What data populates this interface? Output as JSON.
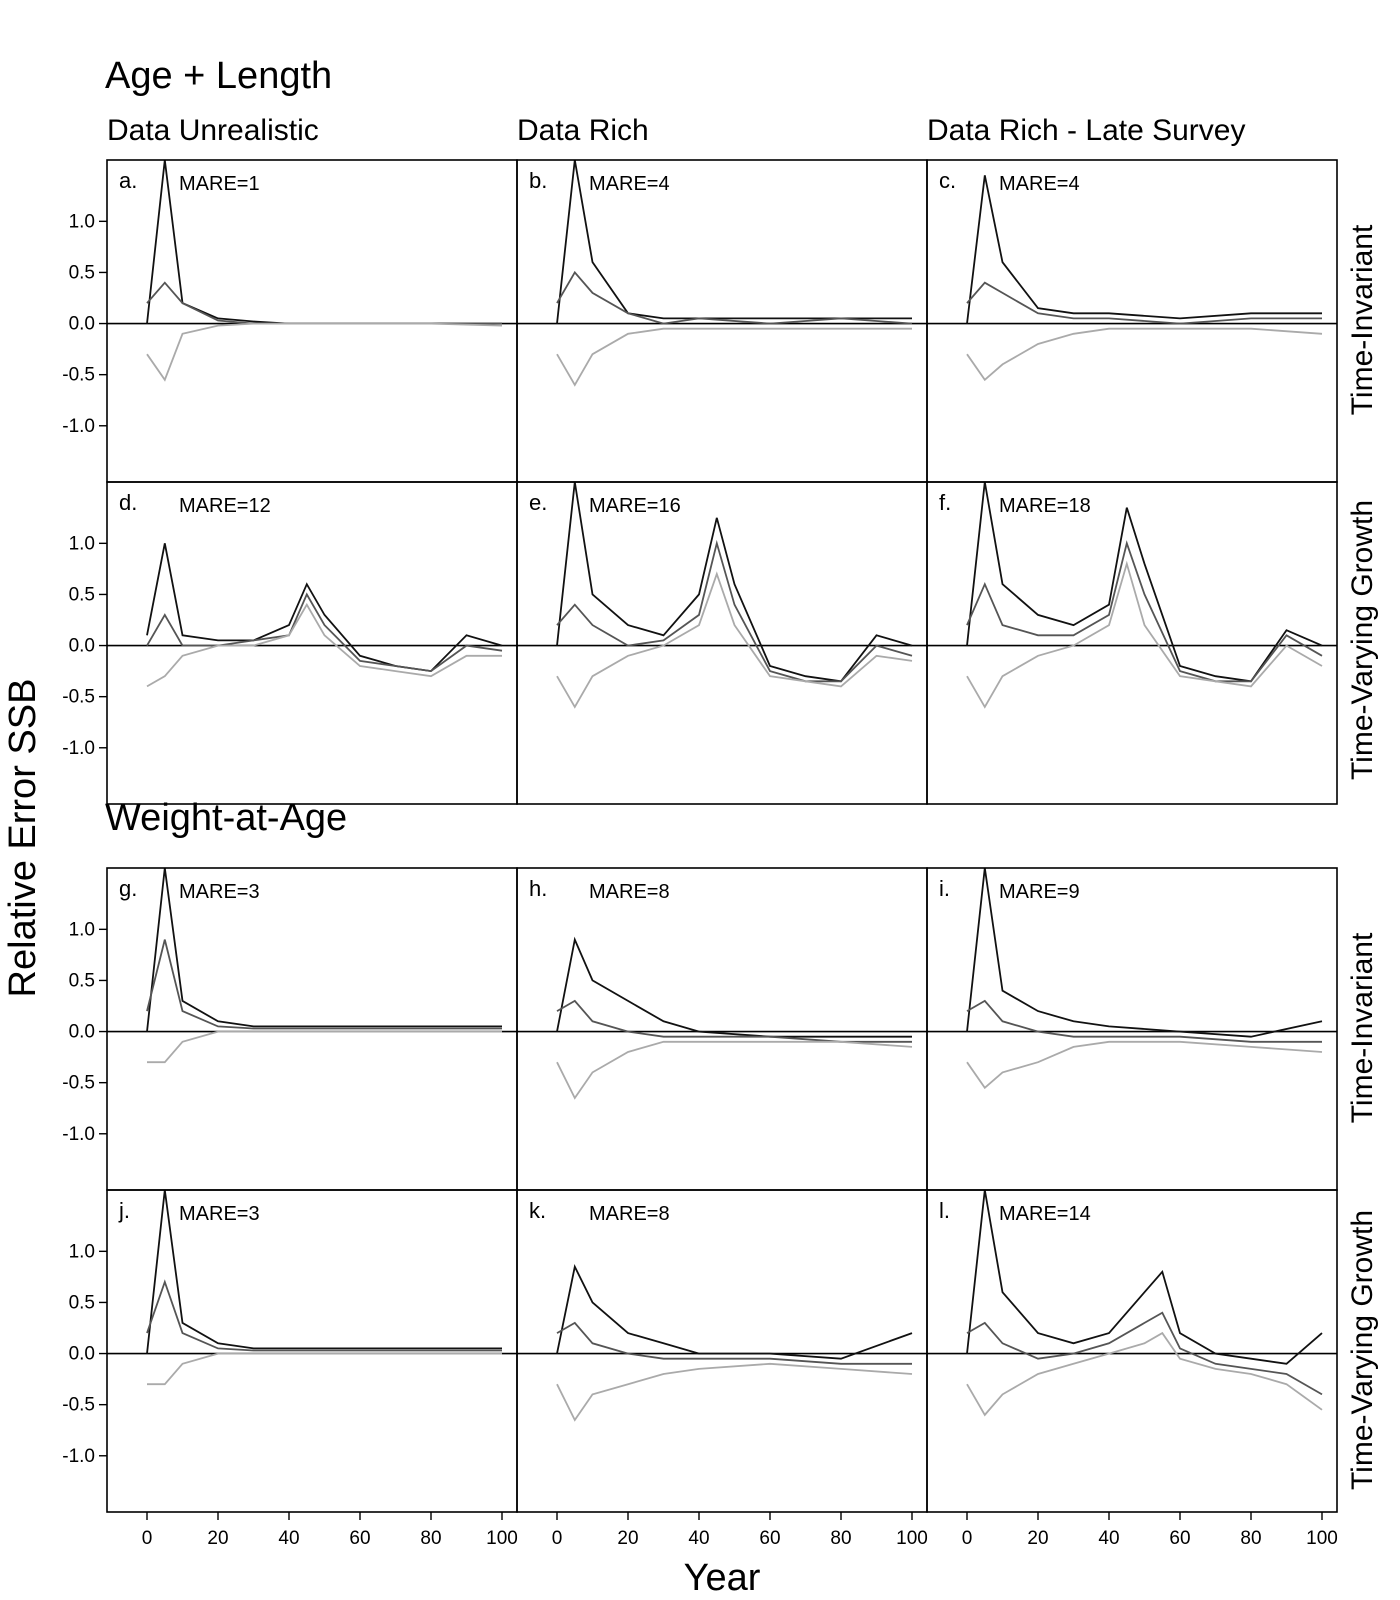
{
  "sections": [
    {
      "title": "Age + Length"
    },
    {
      "title": "Weight-at-Age"
    }
  ],
  "columns": [
    "Data Unrealistic",
    "Data Rich",
    "Data Rich - Late Survey"
  ],
  "row_labels": [
    "Time-Invariant",
    "Time-Varying Growth",
    "Time-Invariant",
    "Time-Varying Growth"
  ],
  "y_axis_title": "Relative Error SSB",
  "x_axis_title": "Year",
  "y_ticks": [
    "1.0",
    "0.5",
    "0.0",
    "-0.5",
    "-1.0"
  ],
  "x_ticks": [
    "0",
    "20",
    "40",
    "60",
    "80",
    "100"
  ],
  "colors": {
    "line_dark": "#111111",
    "line_mid": "#555555",
    "line_light": "#aaaaaa",
    "reference_line": "#000000"
  },
  "chart_data": {
    "type": "line",
    "description_of_series": "Each panel shows many simulated replicate trajectories of relative error in SSB over years 0-100; curves below are representative envelopes read from the figure.",
    "xlim": [
      0,
      100
    ],
    "ylim": [
      -1.55,
      1.6
    ],
    "panels": [
      {
        "letter": "a.",
        "mare": "MARE=1",
        "section": 0,
        "row": 0,
        "col": 0,
        "x": [
          0,
          5,
          10,
          20,
          30,
          40,
          60,
          80,
          100
        ],
        "series": [
          {
            "values": [
              0.0,
              1.6,
              0.2,
              0.05,
              0.02,
              0.0,
              0.0,
              0.0,
              0.0
            ]
          },
          {
            "values": [
              0.2,
              0.4,
              0.2,
              0.03,
              0.0,
              0.0,
              0.0,
              0.0,
              0.0
            ]
          },
          {
            "values": [
              -0.3,
              -0.55,
              -0.1,
              -0.02,
              0.0,
              0.0,
              0.0,
              0.0,
              -0.02
            ]
          }
        ]
      },
      {
        "letter": "b.",
        "mare": "MARE=4",
        "section": 0,
        "row": 0,
        "col": 1,
        "x": [
          0,
          5,
          10,
          20,
          30,
          40,
          60,
          80,
          100
        ],
        "series": [
          {
            "values": [
              0.0,
              1.6,
              0.6,
              0.1,
              0.05,
              0.05,
              0.05,
              0.05,
              0.05
            ]
          },
          {
            "values": [
              0.2,
              0.5,
              0.3,
              0.1,
              0.0,
              0.05,
              0.0,
              0.05,
              0.0
            ]
          },
          {
            "values": [
              -0.3,
              -0.6,
              -0.3,
              -0.1,
              -0.05,
              -0.05,
              -0.05,
              -0.05,
              -0.05
            ]
          }
        ]
      },
      {
        "letter": "c.",
        "mare": "MARE=4",
        "section": 0,
        "row": 0,
        "col": 2,
        "x": [
          0,
          5,
          10,
          20,
          30,
          40,
          60,
          80,
          100
        ],
        "series": [
          {
            "values": [
              0.0,
              1.45,
              0.6,
              0.15,
              0.1,
              0.1,
              0.05,
              0.1,
              0.1
            ]
          },
          {
            "values": [
              0.2,
              0.4,
              0.3,
              0.1,
              0.05,
              0.05,
              0.0,
              0.05,
              0.05
            ]
          },
          {
            "values": [
              -0.3,
              -0.55,
              -0.4,
              -0.2,
              -0.1,
              -0.05,
              -0.05,
              -0.05,
              -0.1
            ]
          }
        ]
      },
      {
        "letter": "d.",
        "mare": "MARE=12",
        "section": 0,
        "row": 1,
        "col": 0,
        "x": [
          0,
          5,
          10,
          20,
          30,
          40,
          45,
          50,
          60,
          70,
          80,
          90,
          100
        ],
        "series": [
          {
            "values": [
              0.1,
              1.0,
              0.1,
              0.05,
              0.05,
              0.2,
              0.6,
              0.3,
              -0.1,
              -0.2,
              -0.25,
              0.1,
              0.0
            ]
          },
          {
            "values": [
              0.0,
              0.3,
              0.0,
              0.0,
              0.05,
              0.1,
              0.5,
              0.2,
              -0.15,
              -0.2,
              -0.25,
              0.0,
              -0.05
            ]
          },
          {
            "values": [
              -0.4,
              -0.3,
              -0.1,
              0.0,
              0.0,
              0.1,
              0.4,
              0.1,
              -0.2,
              -0.25,
              -0.3,
              -0.1,
              -0.1
            ]
          }
        ]
      },
      {
        "letter": "e.",
        "mare": "MARE=16",
        "section": 0,
        "row": 1,
        "col": 1,
        "x": [
          0,
          5,
          10,
          20,
          30,
          40,
          45,
          50,
          60,
          70,
          80,
          90,
          100
        ],
        "series": [
          {
            "values": [
              0.0,
              1.6,
              0.5,
              0.2,
              0.1,
              0.5,
              1.25,
              0.6,
              -0.2,
              -0.3,
              -0.35,
              0.1,
              0.0
            ]
          },
          {
            "values": [
              0.2,
              0.4,
              0.2,
              0.0,
              0.05,
              0.3,
              1.0,
              0.4,
              -0.25,
              -0.35,
              -0.35,
              0.0,
              -0.1
            ]
          },
          {
            "values": [
              -0.3,
              -0.6,
              -0.3,
              -0.1,
              0.0,
              0.2,
              0.7,
              0.2,
              -0.3,
              -0.35,
              -0.4,
              -0.1,
              -0.15
            ]
          }
        ]
      },
      {
        "letter": "f.",
        "mare": "MARE=18",
        "section": 0,
        "row": 1,
        "col": 2,
        "x": [
          0,
          5,
          10,
          20,
          30,
          40,
          45,
          50,
          60,
          70,
          80,
          90,
          100
        ],
        "series": [
          {
            "values": [
              0.0,
              1.6,
              0.6,
              0.3,
              0.2,
              0.4,
              1.35,
              0.8,
              -0.2,
              -0.3,
              -0.35,
              0.15,
              0.0
            ]
          },
          {
            "values": [
              0.2,
              0.6,
              0.2,
              0.1,
              0.1,
              0.3,
              1.0,
              0.5,
              -0.25,
              -0.35,
              -0.35,
              0.1,
              -0.1
            ]
          },
          {
            "values": [
              -0.3,
              -0.6,
              -0.3,
              -0.1,
              0.0,
              0.2,
              0.8,
              0.2,
              -0.3,
              -0.35,
              -0.4,
              0.0,
              -0.2
            ]
          }
        ]
      },
      {
        "letter": "g.",
        "mare": "MARE=3",
        "section": 1,
        "row": 0,
        "col": 0,
        "x": [
          0,
          5,
          10,
          20,
          30,
          40,
          60,
          80,
          100
        ],
        "series": [
          {
            "values": [
              0.0,
              1.6,
              0.3,
              0.1,
              0.05,
              0.05,
              0.05,
              0.05,
              0.05
            ]
          },
          {
            "values": [
              0.2,
              0.9,
              0.2,
              0.05,
              0.03,
              0.03,
              0.03,
              0.03,
              0.03
            ]
          },
          {
            "values": [
              -0.3,
              -0.3,
              -0.1,
              0.0,
              0.0,
              0.0,
              0.0,
              0.0,
              0.0
            ]
          }
        ]
      },
      {
        "letter": "h.",
        "mare": "MARE=8",
        "section": 1,
        "row": 0,
        "col": 1,
        "x": [
          0,
          5,
          10,
          20,
          30,
          40,
          60,
          80,
          100
        ],
        "series": [
          {
            "values": [
              0.0,
              0.9,
              0.5,
              0.3,
              0.1,
              0.0,
              -0.05,
              -0.05,
              -0.05
            ]
          },
          {
            "values": [
              0.2,
              0.3,
              0.1,
              0.0,
              -0.05,
              -0.05,
              -0.05,
              -0.1,
              -0.1
            ]
          },
          {
            "values": [
              -0.3,
              -0.65,
              -0.4,
              -0.2,
              -0.1,
              -0.1,
              -0.1,
              -0.1,
              -0.15
            ]
          }
        ]
      },
      {
        "letter": "i.",
        "mare": "MARE=9",
        "section": 1,
        "row": 0,
        "col": 2,
        "x": [
          0,
          5,
          10,
          20,
          30,
          40,
          60,
          80,
          100
        ],
        "series": [
          {
            "values": [
              0.0,
              1.6,
              0.4,
              0.2,
              0.1,
              0.05,
              0.0,
              -0.05,
              0.1
            ]
          },
          {
            "values": [
              0.2,
              0.3,
              0.1,
              0.0,
              -0.05,
              -0.05,
              -0.05,
              -0.1,
              -0.1
            ]
          },
          {
            "values": [
              -0.3,
              -0.55,
              -0.4,
              -0.3,
              -0.15,
              -0.1,
              -0.1,
              -0.15,
              -0.2
            ]
          }
        ]
      },
      {
        "letter": "j.",
        "mare": "MARE=3",
        "section": 1,
        "row": 1,
        "col": 0,
        "x": [
          0,
          5,
          10,
          20,
          30,
          40,
          60,
          80,
          100
        ],
        "series": [
          {
            "values": [
              0.0,
              1.6,
              0.3,
              0.1,
              0.05,
              0.05,
              0.05,
              0.05,
              0.05
            ]
          },
          {
            "values": [
              0.2,
              0.7,
              0.2,
              0.05,
              0.03,
              0.03,
              0.03,
              0.03,
              0.03
            ]
          },
          {
            "values": [
              -0.3,
              -0.3,
              -0.1,
              0.0,
              0.0,
              0.0,
              0.0,
              0.0,
              0.0
            ]
          }
        ]
      },
      {
        "letter": "k.",
        "mare": "MARE=8",
        "section": 1,
        "row": 1,
        "col": 1,
        "x": [
          0,
          5,
          10,
          20,
          30,
          40,
          60,
          80,
          100
        ],
        "series": [
          {
            "values": [
              0.0,
              0.85,
              0.5,
              0.2,
              0.1,
              0.0,
              0.0,
              -0.05,
              0.2
            ]
          },
          {
            "values": [
              0.2,
              0.3,
              0.1,
              0.0,
              -0.05,
              -0.05,
              -0.05,
              -0.1,
              -0.1
            ]
          },
          {
            "values": [
              -0.3,
              -0.65,
              -0.4,
              -0.3,
              -0.2,
              -0.15,
              -0.1,
              -0.15,
              -0.2
            ]
          }
        ]
      },
      {
        "letter": "l.",
        "mare": "MARE=14",
        "section": 1,
        "row": 1,
        "col": 2,
        "x": [
          0,
          5,
          10,
          20,
          30,
          40,
          50,
          55,
          60,
          70,
          80,
          90,
          100
        ],
        "series": [
          {
            "values": [
              0.0,
              1.6,
              0.6,
              0.2,
              0.1,
              0.2,
              0.6,
              0.8,
              0.2,
              0.0,
              -0.05,
              -0.1,
              0.2
            ]
          },
          {
            "values": [
              0.2,
              0.3,
              0.1,
              -0.05,
              0.0,
              0.1,
              0.3,
              0.4,
              0.05,
              -0.1,
              -0.15,
              -0.2,
              -0.4
            ]
          },
          {
            "values": [
              -0.3,
              -0.6,
              -0.4,
              -0.2,
              -0.1,
              0.0,
              0.1,
              0.2,
              -0.05,
              -0.15,
              -0.2,
              -0.3,
              -0.55
            ]
          }
        ]
      }
    ]
  }
}
